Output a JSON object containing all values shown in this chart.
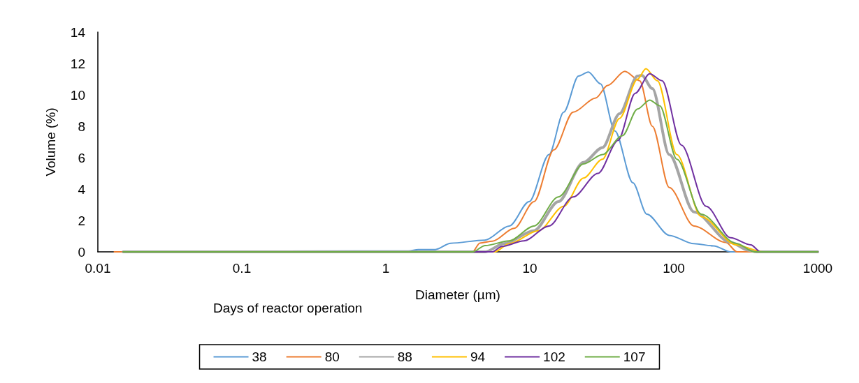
{
  "chart_data": {
    "type": "line",
    "xlabel": "Diameter (µm)",
    "ylabel": "Volume (%)",
    "legend_title": "Days of reactor operation",
    "legend": "bottom",
    "grid": false,
    "marker": "none",
    "line_style": "solid",
    "log": "x",
    "xlim": [
      0.01,
      1000
    ],
    "xticks": [
      0.01,
      0.1,
      1,
      10,
      100,
      1000
    ],
    "ylim": [
      0,
      14
    ],
    "yticks": [
      0,
      2,
      4,
      6,
      8,
      10,
      12,
      14
    ],
    "series": [
      {
        "name": "38",
        "color": "#5b9bd5",
        "x": [
          0.015,
          1.44,
          1.68,
          2.21,
          2.82,
          4.88,
          7.2,
          9.9,
          13.6,
          17.2,
          21.8,
          25.5,
          31,
          39,
          52,
          65,
          93,
          138,
          189,
          248,
          1000
        ],
        "values": [
          0,
          0.06,
          0.15,
          0.15,
          0.55,
          0.75,
          1.65,
          3.2,
          6.2,
          8.9,
          11.2,
          11.46,
          10.7,
          7.7,
          4.4,
          2.4,
          1.05,
          0.52,
          0.38,
          0,
          0
        ]
      },
      {
        "name": "80",
        "color": "#ed7d31",
        "x": [
          0.013,
          4.0,
          4.5,
          5.5,
          7.8,
          10.7,
          14.7,
          20,
          28.7,
          34.7,
          45.7,
          58,
          71,
          93,
          138,
          230,
          275,
          1000
        ],
        "values": [
          0,
          0,
          0.56,
          0.68,
          1.5,
          3.2,
          6.5,
          8.9,
          9.8,
          10.6,
          11.5,
          10.9,
          8.0,
          4.1,
          1.65,
          0.6,
          0,
          0
        ]
      },
      {
        "name": "88",
        "color": "#a5a5a5",
        "x": [
          0.015,
          4.9,
          6.6,
          10.7,
          15.8,
          23.6,
          32,
          42,
          56,
          60,
          71,
          93,
          138,
          248,
          330,
          375,
          1000
        ],
        "values": [
          0,
          0,
          0.52,
          1.35,
          3.2,
          5.7,
          6.65,
          8.8,
          11.2,
          11.25,
          10.4,
          6.2,
          2.55,
          0.6,
          0.1,
          0,
          0
        ]
      },
      {
        "name": "94",
        "color": "#ffc000",
        "x": [
          0.015,
          5.7,
          7.2,
          11.5,
          17.2,
          23.6,
          32,
          42,
          56,
          64,
          77,
          105,
          155,
          270,
          415,
          1000
        ],
        "values": [
          0,
          0,
          0.52,
          1.35,
          2.9,
          4.7,
          5.9,
          8.5,
          11.0,
          11.67,
          10.9,
          6.2,
          2.25,
          0.45,
          0,
          0
        ]
      },
      {
        "name": "102",
        "color": "#7030a0",
        "x": [
          0.015,
          5.5,
          6.4,
          9.1,
          13.6,
          20,
          29.8,
          41,
          54,
          68,
          83,
          113,
          168,
          248,
          343,
          400,
          1000
        ],
        "values": [
          0,
          0,
          0.35,
          0.7,
          1.65,
          3.5,
          5.0,
          7.1,
          10.1,
          11.34,
          10.9,
          6.8,
          2.9,
          0.9,
          0.45,
          0,
          0
        ]
      },
      {
        "name": "107",
        "color": "#70ad47",
        "x": [
          0.015,
          4.0,
          4.9,
          7.2,
          10.7,
          15.8,
          23.6,
          32,
          44,
          56,
          68,
          80,
          105,
          155,
          270,
          365,
          1000
        ],
        "values": [
          0,
          0,
          0.4,
          0.7,
          1.65,
          3.5,
          5.6,
          6.2,
          7.4,
          9.1,
          9.67,
          9.3,
          5.9,
          2.4,
          0.55,
          0,
          0
        ]
      }
    ]
  }
}
